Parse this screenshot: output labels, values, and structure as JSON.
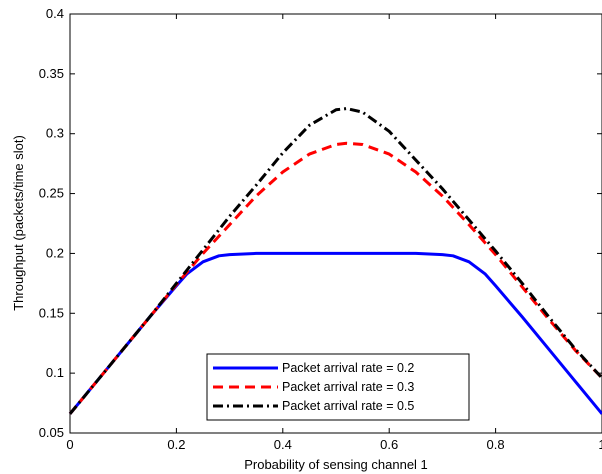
{
  "chart_data": {
    "type": "line",
    "title": "",
    "xlabel": "Probability of sensing channel 1",
    "ylabel": "Throughput (packets/time slot)",
    "xlim": [
      0,
      1
    ],
    "ylim": [
      0.05,
      0.4
    ],
    "xticks": [
      0,
      0.2,
      0.4,
      0.6,
      0.8,
      1
    ],
    "xtick_labels": [
      "0",
      "0.2",
      "0.4",
      "0.6",
      "0.8",
      "1"
    ],
    "yticks": [
      0.05,
      0.1,
      0.15,
      0.2,
      0.25,
      0.3,
      0.35,
      0.4
    ],
    "ytick_labels": [
      "0.05",
      "0.1",
      "0.15",
      "0.2",
      "0.25",
      "0.3",
      "0.35",
      "0.4"
    ],
    "grid": false,
    "legend_position": "bottom-center",
    "series": [
      {
        "name": "Packet arrival rate = 0.2",
        "color": "#0000ff",
        "style": "solid",
        "x": [
          0,
          0.05,
          0.1,
          0.15,
          0.2,
          0.22,
          0.25,
          0.28,
          0.3,
          0.35,
          0.4,
          0.5,
          0.6,
          0.65,
          0.7,
          0.72,
          0.75,
          0.78,
          0.8,
          0.85,
          0.9,
          0.95,
          1
        ],
        "values": [
          0.066,
          0.093,
          0.12,
          0.147,
          0.173,
          0.183,
          0.193,
          0.198,
          0.199,
          0.2,
          0.2,
          0.2,
          0.2,
          0.2,
          0.199,
          0.198,
          0.193,
          0.183,
          0.173,
          0.147,
          0.12,
          0.093,
          0.066
        ]
      },
      {
        "name": "Packet arrival rate = 0.3",
        "color": "#ff0000",
        "style": "dashed",
        "x": [
          0,
          0.05,
          0.1,
          0.15,
          0.2,
          0.25,
          0.3,
          0.35,
          0.4,
          0.45,
          0.5,
          0.52,
          0.55,
          0.6,
          0.65,
          0.7,
          0.75,
          0.8,
          0.85,
          0.9,
          0.95,
          1
        ],
        "values": [
          0.066,
          0.093,
          0.12,
          0.147,
          0.174,
          0.2,
          0.224,
          0.248,
          0.268,
          0.283,
          0.291,
          0.292,
          0.291,
          0.283,
          0.268,
          0.248,
          0.224,
          0.199,
          0.172,
          0.145,
          0.119,
          0.096
        ]
      },
      {
        "name": "Packet arrival rate = 0.5",
        "color": "#000000",
        "style": "dashdot",
        "x": [
          0,
          0.05,
          0.1,
          0.15,
          0.2,
          0.25,
          0.3,
          0.35,
          0.4,
          0.45,
          0.5,
          0.52,
          0.55,
          0.6,
          0.65,
          0.7,
          0.75,
          0.8,
          0.85,
          0.9,
          0.95,
          1
        ],
        "values": [
          0.066,
          0.093,
          0.12,
          0.147,
          0.175,
          0.203,
          0.231,
          0.257,
          0.284,
          0.307,
          0.32,
          0.321,
          0.318,
          0.302,
          0.278,
          0.254,
          0.228,
          0.202,
          0.175,
          0.147,
          0.12,
          0.096
        ]
      }
    ]
  }
}
